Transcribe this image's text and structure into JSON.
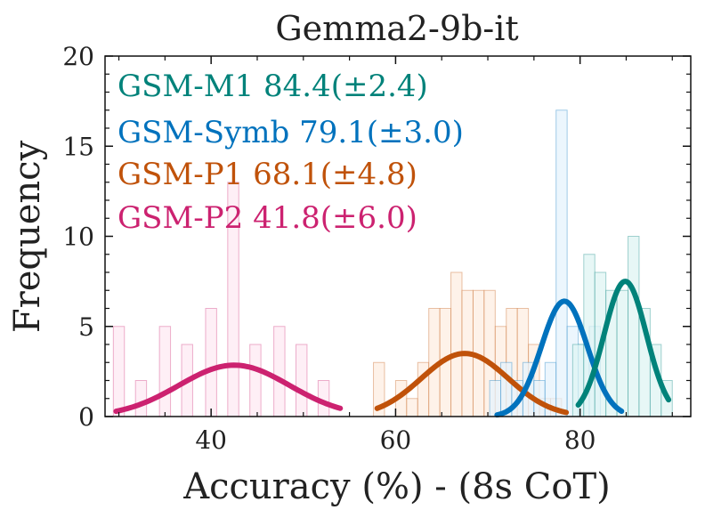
{
  "chart_data": {
    "type": "histogram",
    "title": "Gemma2-9b-it",
    "xlabel": "Accuracy (%) - (8s CoT)",
    "ylabel": "Frequency",
    "xlim": [
      28.5,
      92
    ],
    "ylim": [
      0,
      20
    ],
    "xticks": [
      40,
      60,
      80
    ],
    "yticks": [
      0,
      5,
      10,
      15,
      20
    ],
    "bin_width": 1.2,
    "legend_position": "top-left",
    "series": [
      {
        "name": "GSM-M1",
        "label": "GSM-M1 84.4(±2.4)",
        "color": "#00827a",
        "fill": "#dff4f3",
        "bins": [
          {
            "x": 79.8,
            "y": 4
          },
          {
            "x": 81.0,
            "y": 9
          },
          {
            "x": 82.2,
            "y": 8
          },
          {
            "x": 83.4,
            "y": 7
          },
          {
            "x": 84.6,
            "y": 7
          },
          {
            "x": 85.8,
            "y": 10
          },
          {
            "x": 87.0,
            "y": 6
          },
          {
            "x": 88.2,
            "y": 4
          },
          {
            "x": 89.4,
            "y": 2
          }
        ],
        "curve": {
          "mean": 84.9,
          "sd": 2.3,
          "peak": 7.5,
          "x_range": [
            79.8,
            89.6
          ]
        }
      },
      {
        "name": "GSM-Symb",
        "label": "GSM-Symb 79.1(±3.0)",
        "color": "#0072bd",
        "fill": "#e5f3fc",
        "bins": [
          {
            "x": 70.8,
            "y": 2
          },
          {
            "x": 72.0,
            "y": 3
          },
          {
            "x": 73.2,
            "y": 2
          },
          {
            "x": 74.4,
            "y": 3
          },
          {
            "x": 75.6,
            "y": 2
          },
          {
            "x": 76.8,
            "y": 3
          },
          {
            "x": 78.0,
            "y": 17
          },
          {
            "x": 79.2,
            "y": 5
          },
          {
            "x": 80.4,
            "y": 4
          },
          {
            "x": 81.6,
            "y": 5
          }
        ],
        "curve": {
          "mean": 78.3,
          "sd": 2.5,
          "peak": 6.4,
          "x_range": [
            71.0,
            84.5
          ]
        }
      },
      {
        "name": "GSM-P1",
        "label": "GSM-P1 68.1(±4.8)",
        "color": "#c0520a",
        "fill": "#fdeee2",
        "bins": [
          {
            "x": 58.2,
            "y": 3
          },
          {
            "x": 60.6,
            "y": 2
          },
          {
            "x": 61.8,
            "y": 1
          },
          {
            "x": 63.0,
            "y": 3
          },
          {
            "x": 64.2,
            "y": 6
          },
          {
            "x": 65.4,
            "y": 6
          },
          {
            "x": 66.6,
            "y": 8
          },
          {
            "x": 67.8,
            "y": 7
          },
          {
            "x": 69.0,
            "y": 7
          },
          {
            "x": 70.2,
            "y": 7
          },
          {
            "x": 71.4,
            "y": 5
          },
          {
            "x": 72.6,
            "y": 6
          },
          {
            "x": 73.8,
            "y": 6
          },
          {
            "x": 75.0,
            "y": 4
          },
          {
            "x": 76.2,
            "y": 1
          },
          {
            "x": 77.4,
            "y": 1
          }
        ],
        "curve": {
          "mean": 67.5,
          "sd": 4.7,
          "peak": 3.5,
          "x_range": [
            58.0,
            78.5
          ]
        }
      },
      {
        "name": "GSM-P2",
        "label": "GSM-P2 41.8(±6.0)",
        "color": "#cc2270",
        "fill": "#fdeaf3",
        "bins": [
          {
            "x": 30.0,
            "y": 5
          },
          {
            "x": 32.4,
            "y": 2
          },
          {
            "x": 35.0,
            "y": 5
          },
          {
            "x": 37.4,
            "y": 4
          },
          {
            "x": 40.0,
            "y": 6
          },
          {
            "x": 42.4,
            "y": 13
          },
          {
            "x": 44.8,
            "y": 4
          },
          {
            "x": 47.4,
            "y": 5
          },
          {
            "x": 49.8,
            "y": 4
          },
          {
            "x": 52.2,
            "y": 2
          }
        ],
        "curve": {
          "mean": 42.5,
          "sd": 6.0,
          "peak": 2.85,
          "x_range": [
            29.7,
            54.0
          ]
        }
      }
    ]
  }
}
